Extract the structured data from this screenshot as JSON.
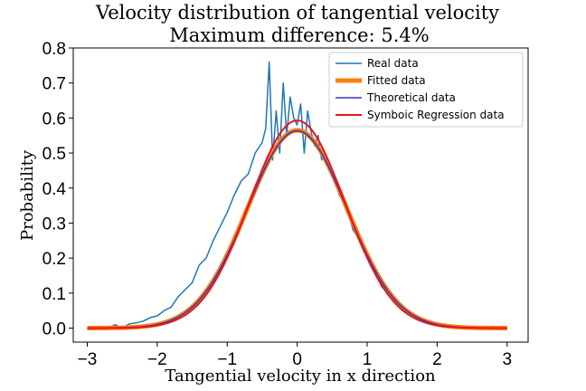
{
  "chart_data": {
    "type": "line",
    "title": "Velocity distribution of tangential velocity",
    "subtitle": "Maximum difference: 5.4%",
    "xlabel": "Tangential velocity in x direction",
    "ylabel": "Probability",
    "xlim": [
      -3.2,
      3.3
    ],
    "ylim": [
      -0.04,
      0.8
    ],
    "xticks": [
      -3,
      -2,
      -1,
      0,
      1,
      2,
      3
    ],
    "xtick_labels": [
      "−3",
      "−2",
      "−1",
      "0",
      "1",
      "2",
      "3"
    ],
    "yticks": [
      0.0,
      0.1,
      0.2,
      0.3,
      0.4,
      0.5,
      0.6,
      0.7,
      0.8
    ],
    "ytick_labels": [
      "0.0",
      "0.1",
      "0.2",
      "0.3",
      "0.4",
      "0.5",
      "0.6",
      "0.7",
      "0.8"
    ],
    "grid": false,
    "legend_position": "top-right",
    "series": [
      {
        "name": "Real data",
        "color": "#1f77b4",
        "x": [
          -3.0,
          -2.9,
          -2.8,
          -2.7,
          -2.6,
          -2.5,
          -2.4,
          -2.3,
          -2.2,
          -2.1,
          -2.0,
          -1.9,
          -1.8,
          -1.7,
          -1.6,
          -1.5,
          -1.4,
          -1.3,
          -1.2,
          -1.1,
          -1.0,
          -0.9,
          -0.8,
          -0.7,
          -0.6,
          -0.5,
          -0.45,
          -0.4,
          -0.35,
          -0.3,
          -0.25,
          -0.2,
          -0.15,
          -0.1,
          -0.05,
          0.0,
          0.05,
          0.1,
          0.15,
          0.2,
          0.25,
          0.3,
          0.35,
          0.4,
          0.5,
          0.6,
          0.7,
          0.8,
          0.9,
          1.0,
          1.1,
          1.2,
          1.3,
          1.4,
          1.5,
          1.6,
          1.7,
          1.8,
          1.9,
          2.0,
          2.1,
          2.2,
          2.3,
          2.4,
          2.5,
          2.6,
          2.7,
          2.8,
          2.9,
          3.0
        ],
        "y": [
          0.0,
          0.0,
          0.005,
          0.0,
          0.01,
          0.0,
          0.012,
          0.015,
          0.02,
          0.03,
          0.035,
          0.05,
          0.06,
          0.09,
          0.11,
          0.13,
          0.18,
          0.2,
          0.25,
          0.29,
          0.33,
          0.38,
          0.42,
          0.44,
          0.5,
          0.53,
          0.57,
          0.76,
          0.48,
          0.62,
          0.5,
          0.7,
          0.55,
          0.66,
          0.6,
          0.58,
          0.64,
          0.5,
          0.62,
          0.56,
          0.52,
          0.55,
          0.48,
          0.5,
          0.45,
          0.38,
          0.35,
          0.28,
          0.25,
          0.2,
          0.18,
          0.12,
          0.1,
          0.08,
          0.05,
          0.04,
          0.03,
          0.02,
          0.015,
          0.01,
          0.008,
          0.005,
          0.003,
          0.002,
          0.0,
          0.0,
          0.0,
          0.0,
          0.0,
          0.0
        ]
      },
      {
        "name": "Fitted data",
        "color": "#ff7f0e",
        "function": "gaussian",
        "mean": 0.0,
        "sigma": 0.71,
        "amplitude": 0.565,
        "x_range": [
          -3,
          3
        ]
      },
      {
        "name": "Theoretical data",
        "color": "#3333cc",
        "function": "gaussian",
        "mean": 0.0,
        "sigma": 0.71,
        "amplitude": 0.563,
        "x_range": [
          -3,
          3
        ]
      },
      {
        "name": "Symboic Regression data",
        "color": "#e8141c",
        "function": "gaussian",
        "mean": 0.0,
        "sigma": 0.68,
        "amplitude": 0.593,
        "x_range": [
          -3,
          3
        ]
      }
    ]
  }
}
